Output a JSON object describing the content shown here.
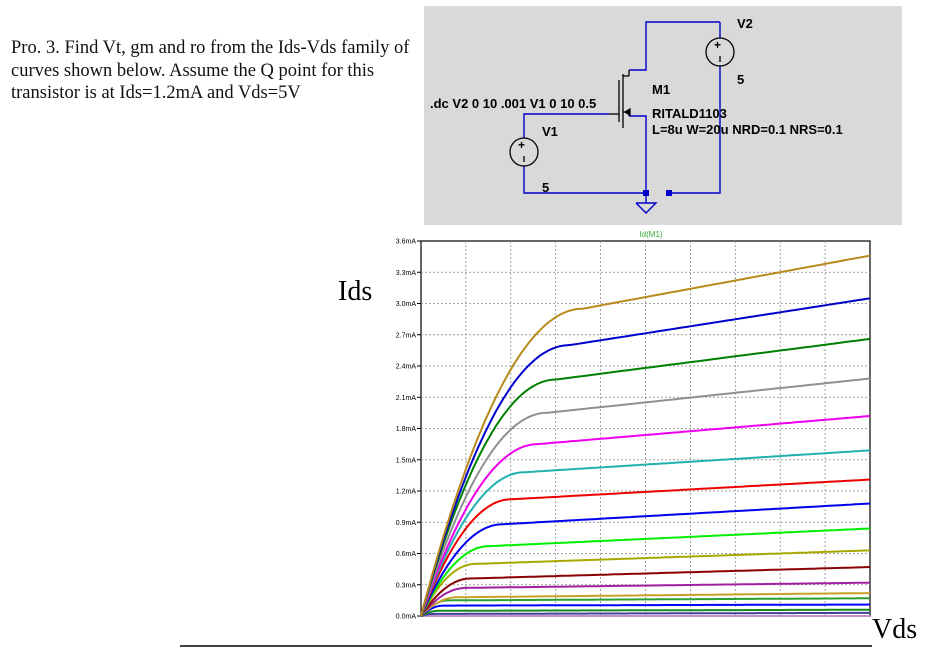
{
  "problem": {
    "text": "Pro. 3.  Find Vt, gm and ro from the Ids-Vds family of curves shown below.  Assume the Q point for this transistor is at Ids=1.2mA and Vds=5V"
  },
  "schematic": {
    "directive": ".dc V2 0 10 .001 V1 0 10 0.5",
    "v2_label": "V2",
    "v2_value": "5",
    "v1_label": "V1",
    "v1_value": "5",
    "m1_label": "M1",
    "model": "RITALD1103",
    "params": "L=8u W=20u NRD=0.1 NRS=0.1",
    "background": "#d9d9d9",
    "wire_color": "#0000cc"
  },
  "plot": {
    "ylabel": "Ids",
    "xlabel": "Vds",
    "trace_label": "Id(M1)",
    "trace_label_color": "#3aa83a"
  },
  "chart_data": {
    "type": "line",
    "title": "Id(M1)",
    "xlabel": "Vds",
    "ylabel": "Ids",
    "xlim": [
      0,
      10
    ],
    "ylim": [
      0,
      3.6
    ],
    "yticks": [
      "0.0mA",
      "0.3mA",
      "0.6mA",
      "0.9mA",
      "1.2mA",
      "1.5mA",
      "1.8mA",
      "2.1mA",
      "2.4mA",
      "2.7mA",
      "3.0mA",
      "3.3mA",
      "3.6mA"
    ],
    "grid": true,
    "series": [
      {
        "color": "#c890c8",
        "sat": 0.0,
        "vsat": 0.1,
        "end": 0.0
      },
      {
        "color": "#4040a0",
        "sat": 0.02,
        "vsat": 0.3,
        "end": 0.03
      },
      {
        "color": "#1a8a1a",
        "sat": 0.05,
        "vsat": 0.4,
        "end": 0.06
      },
      {
        "color": "#0000ff",
        "sat": 0.1,
        "vsat": 0.5,
        "end": 0.11
      },
      {
        "color": "#2aa030",
        "sat": 0.15,
        "vsat": 0.6,
        "end": 0.17
      },
      {
        "color": "#c8a028",
        "sat": 0.18,
        "vsat": 0.8,
        "end": 0.22
      },
      {
        "color": "#a020a0",
        "sat": 0.27,
        "vsat": 1.0,
        "end": 0.32
      },
      {
        "color": "#8b0000",
        "sat": 0.36,
        "vsat": 1.1,
        "end": 0.47
      },
      {
        "color": "#a8a800",
        "sat": 0.5,
        "vsat": 1.2,
        "end": 0.63
      },
      {
        "color": "#00ee00",
        "sat": 0.67,
        "vsat": 1.5,
        "end": 0.84
      },
      {
        "color": "#0000ee",
        "sat": 0.88,
        "vsat": 1.8,
        "end": 1.08
      },
      {
        "color": "#ee0000",
        "sat": 1.12,
        "vsat": 2.0,
        "end": 1.31
      },
      {
        "color": "#20b0b0",
        "sat": 1.38,
        "vsat": 2.3,
        "end": 1.59
      },
      {
        "color": "#ee00ee",
        "sat": 1.65,
        "vsat": 2.6,
        "end": 1.92
      },
      {
        "color": "#909090",
        "sat": 1.95,
        "vsat": 2.8,
        "end": 2.28
      },
      {
        "color": "#008000",
        "sat": 2.27,
        "vsat": 3.0,
        "end": 2.66
      },
      {
        "color": "#0000cc",
        "sat": 2.6,
        "vsat": 3.3,
        "end": 3.05
      },
      {
        "color": "#b88a1a",
        "sat": 2.95,
        "vsat": 3.6,
        "end": 3.46
      }
    ]
  }
}
